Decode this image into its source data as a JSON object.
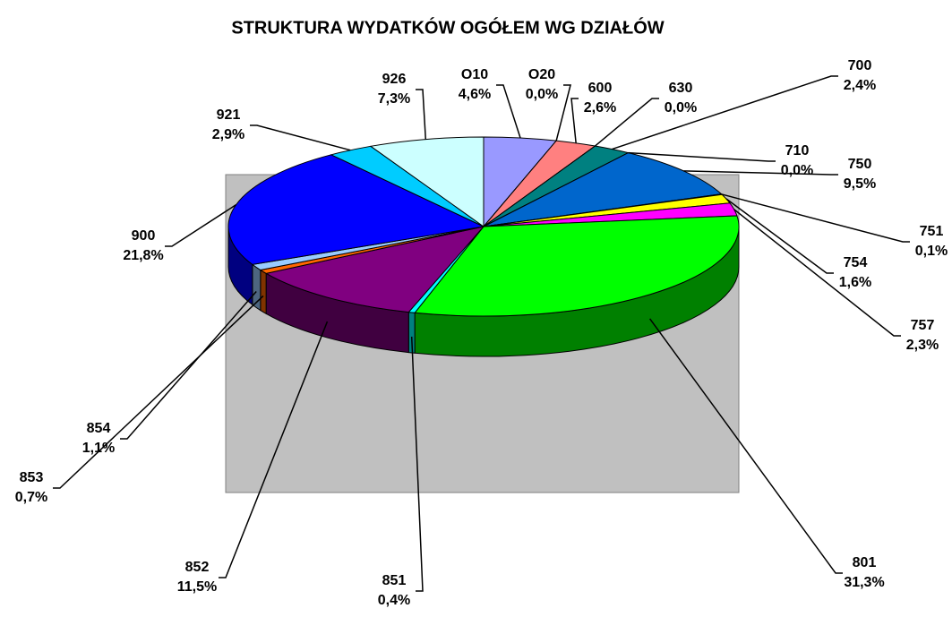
{
  "chart_data": {
    "type": "pie",
    "title": "STRUKTURA WYDATKÓW OGÓŁEM  WG DZIAŁÓW",
    "categories": [
      "O10",
      "O20",
      "600",
      "630",
      "700",
      "710",
      "750",
      "751",
      "754",
      "757",
      "801",
      "851",
      "852",
      "853",
      "854",
      "900",
      "921",
      "926"
    ],
    "values": [
      4.6,
      0.0,
      2.6,
      0.0,
      2.4,
      0.0,
      9.5,
      0.1,
      1.6,
      2.3,
      31.3,
      0.4,
      11.5,
      0.7,
      1.1,
      21.8,
      2.9,
      7.3
    ],
    "value_labels": [
      "4,6%",
      "0,0%",
      "2,6%",
      "0,0%",
      "2,4%",
      "0,0%",
      "9,5%",
      "0,1%",
      "1,6%",
      "2,3%",
      "31,3%",
      "0,4%",
      "11,5%",
      "0,7%",
      "1,1%",
      "21,8%",
      "2,9%",
      "7,3%"
    ],
    "colors": [
      "#9999ff",
      "#ffffcc",
      "#ff8080",
      "#ccccff",
      "#008080",
      "#000080",
      "#0066cc",
      "#333399",
      "#ffff00",
      "#ff00ff",
      "#00ff00",
      "#00ffff",
      "#800080",
      "#ff6600",
      "#99ccff",
      "#0000ff",
      "#00ccff",
      "#ccffff"
    ]
  }
}
